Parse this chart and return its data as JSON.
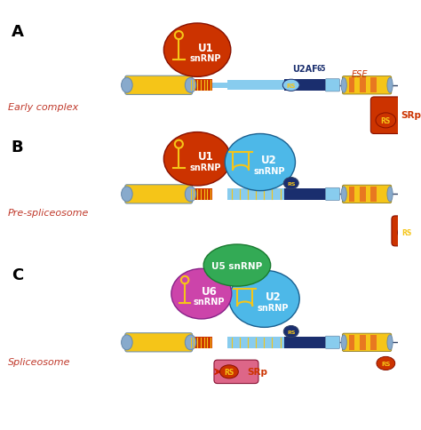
{
  "bg_color": "#ffffff",
  "label_A": "A",
  "label_B": "B",
  "label_C": "C",
  "label_early": "Early complex",
  "label_pre": "Pre-spliceosome",
  "label_spliceosome": "Spliceosome",
  "section_label_color": "#c0392b",
  "u1_color": "#cc3300",
  "u2_color": "#4db8e8",
  "u5_color": "#33aa55",
  "u6_color": "#cc44aa",
  "dark_blue": "#1a2e6e",
  "light_blue": "#88ccee",
  "exon_yellow": "#f5c518",
  "exon_cap_blue": "#88aacc",
  "exon_orange": "#e87820",
  "rs_red": "#cc3300",
  "rs_yellow": "#f5c518",
  "arrow_red": "#cc2200",
  "srp_pink": "#dd6688",
  "srp_red": "#cc3300",
  "white": "#ffffff",
  "black": "#000000",
  "stem_yellow": "#f5c518"
}
